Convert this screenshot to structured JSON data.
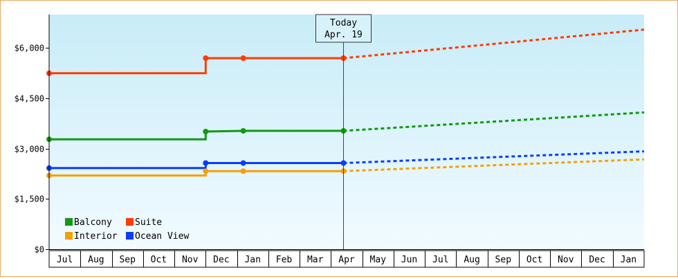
{
  "chart_data": {
    "type": "line",
    "y_ticks": [
      0,
      1500,
      3000,
      4500,
      6000
    ],
    "y_tick_labels": [
      "$0",
      "$1,500",
      "$3,000",
      "$4,500",
      "$6,000"
    ],
    "ylim": [
      0,
      7000
    ],
    "x_months": [
      "Jul",
      "Aug",
      "Sep",
      "Oct",
      "Nov",
      "Dec",
      "Jan",
      "Feb",
      "Mar",
      "Apr",
      "May",
      "Jun",
      "Jul",
      "Aug",
      "Sep",
      "Oct",
      "Nov",
      "Dec",
      "Jan"
    ],
    "today": {
      "label": "Today",
      "date": "Apr. 19"
    },
    "series": [
      {
        "name": "Suite",
        "color": "#ff3c00",
        "history": [
          [
            0,
            5250
          ],
          [
            5.0,
            5250
          ],
          [
            5.0,
            5700
          ],
          [
            6.2,
            5700
          ],
          [
            9.4,
            5700
          ]
        ],
        "forecast": [
          [
            9.4,
            5700
          ],
          [
            19,
            6550
          ]
        ]
      },
      {
        "name": "Balcony",
        "color": "#109a10",
        "history": [
          [
            0,
            3280
          ],
          [
            5.0,
            3280
          ],
          [
            5.0,
            3510
          ],
          [
            6.2,
            3530
          ],
          [
            9.4,
            3530
          ]
        ],
        "forecast": [
          [
            9.4,
            3530
          ],
          [
            19,
            4080
          ]
        ]
      },
      {
        "name": "Ocean View",
        "color": "#0a3cff",
        "history": [
          [
            0,
            2420
          ],
          [
            5.0,
            2420
          ],
          [
            5.0,
            2570
          ],
          [
            6.2,
            2570
          ],
          [
            9.4,
            2570
          ]
        ],
        "forecast": [
          [
            9.4,
            2570
          ],
          [
            19,
            2920
          ]
        ]
      },
      {
        "name": "Interior",
        "color": "#f5a000",
        "history": [
          [
            0,
            2200
          ],
          [
            5.0,
            2200
          ],
          [
            5.0,
            2330
          ],
          [
            6.2,
            2330
          ],
          [
            9.4,
            2330
          ]
        ],
        "forecast": [
          [
            9.4,
            2330
          ],
          [
            19,
            2680
          ]
        ]
      }
    ],
    "legend": [
      {
        "name": "Balcony",
        "color": "#109a10"
      },
      {
        "name": "Suite",
        "color": "#ff3c00"
      },
      {
        "name": "Interior",
        "color": "#f5a000"
      },
      {
        "name": "Ocean View",
        "color": "#0a3cff"
      }
    ],
    "legend_position": "bottom-left",
    "grid": false
  }
}
